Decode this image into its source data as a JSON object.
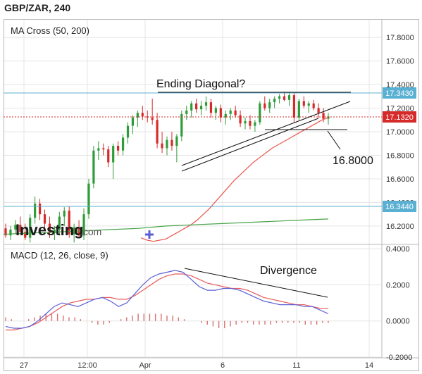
{
  "header": {
    "title": "GBP/ZAR, 240"
  },
  "brand": {
    "logo_text": "Investing",
    "logo_suffix": ".com"
  },
  "colors": {
    "up": "#2f9c3a",
    "down": "#d62a2a",
    "ma50": "#e8584f",
    "ma200": "#48a348",
    "macd": "#5a5fd6",
    "signal": "#e85a5a",
    "hist": "#d87070",
    "hline_blue": "#5ab0d2",
    "last_price": "#d62a2a",
    "grid": "#e4e4e4"
  },
  "chart_data": [
    {
      "type": "candlestick",
      "title": "MA Cross (50, 200)",
      "indicator_label": "MA Cross (50, 200)",
      "ylim": [
        16.05,
        17.95
      ],
      "y_ticks": [
        "17.8000",
        "17.6000",
        "17.4000",
        "17.2000",
        "17.0000",
        "16.8000",
        "16.6000",
        "16.4000",
        "16.2000"
      ],
      "x_ticks": [
        "27",
        "12:00",
        "Apr",
        "6",
        "11",
        "14"
      ],
      "price_tags": {
        "resistance": "17.3430",
        "last": "17.1320",
        "support": "16.3440"
      },
      "annotations": {
        "pattern": "Ending Diagonal?",
        "target": "16.8000"
      },
      "candles": [
        [
          16.18,
          16.22,
          16.1,
          16.12
        ],
        [
          16.12,
          16.2,
          16.08,
          16.17
        ],
        [
          16.17,
          16.25,
          16.13,
          16.21
        ],
        [
          16.21,
          16.28,
          16.12,
          16.15
        ],
        [
          16.15,
          16.22,
          16.08,
          16.1
        ],
        [
          16.1,
          16.3,
          16.06,
          16.27
        ],
        [
          16.27,
          16.45,
          16.22,
          16.39
        ],
        [
          16.39,
          16.43,
          16.25,
          16.3
        ],
        [
          16.3,
          16.34,
          16.18,
          16.22
        ],
        [
          16.22,
          16.28,
          16.1,
          16.14
        ],
        [
          16.14,
          16.2,
          16.08,
          16.17
        ],
        [
          16.17,
          16.32,
          16.12,
          16.28
        ],
        [
          16.28,
          16.36,
          16.2,
          16.33
        ],
        [
          16.33,
          16.37,
          16.1,
          16.13
        ],
        [
          16.13,
          16.22,
          16.06,
          16.19
        ],
        [
          16.19,
          16.25,
          16.1,
          16.12
        ],
        [
          16.12,
          16.35,
          16.08,
          16.3
        ],
        [
          16.3,
          16.6,
          16.26,
          16.56
        ],
        [
          16.56,
          16.88,
          16.52,
          16.84
        ],
        [
          16.84,
          16.92,
          16.76,
          16.86
        ],
        [
          16.86,
          16.9,
          16.8,
          16.85
        ],
        [
          16.85,
          16.88,
          16.7,
          16.74
        ],
        [
          16.74,
          16.9,
          16.6,
          16.88
        ],
        [
          16.88,
          16.92,
          16.8,
          16.84
        ],
        [
          16.84,
          16.98,
          16.8,
          16.95
        ],
        [
          16.95,
          17.08,
          16.9,
          17.05
        ],
        [
          17.05,
          17.14,
          16.98,
          17.12
        ],
        [
          17.12,
          17.18,
          17.04,
          17.16
        ],
        [
          17.16,
          17.22,
          17.1,
          17.13
        ],
        [
          17.13,
          17.18,
          17.08,
          17.12
        ],
        [
          17.12,
          17.28,
          17.06,
          17.1
        ],
        [
          17.1,
          17.16,
          16.86,
          16.9
        ],
        [
          16.9,
          17.0,
          16.82,
          16.86
        ],
        [
          16.86,
          16.96,
          16.8,
          16.93
        ],
        [
          16.93,
          17.0,
          16.84,
          16.88
        ],
        [
          16.88,
          16.98,
          16.74,
          16.96
        ],
        [
          16.96,
          17.18,
          16.92,
          17.15
        ],
        [
          17.15,
          17.22,
          17.1,
          17.18
        ],
        [
          17.18,
          17.26,
          17.12,
          17.24
        ],
        [
          17.24,
          17.28,
          17.16,
          17.19
        ],
        [
          17.19,
          17.26,
          17.14,
          17.22
        ],
        [
          17.22,
          17.3,
          17.18,
          17.25
        ],
        [
          17.25,
          17.28,
          17.12,
          17.16
        ],
        [
          17.16,
          17.22,
          17.1,
          17.2
        ],
        [
          17.2,
          17.23,
          17.08,
          17.12
        ],
        [
          17.12,
          17.18,
          17.06,
          17.15
        ],
        [
          17.15,
          17.2,
          17.1,
          17.18
        ],
        [
          17.18,
          17.22,
          17.12,
          17.14
        ],
        [
          17.14,
          17.18,
          17.04,
          17.07
        ],
        [
          17.07,
          17.12,
          17.02,
          17.09
        ],
        [
          17.09,
          17.14,
          17.02,
          17.05
        ],
        [
          17.05,
          17.1,
          17.0,
          17.08
        ],
        [
          17.08,
          17.26,
          17.06,
          17.24
        ],
        [
          17.24,
          17.3,
          17.18,
          17.2
        ],
        [
          17.2,
          17.28,
          17.16,
          17.25
        ],
        [
          17.25,
          17.3,
          17.2,
          17.28
        ],
        [
          17.28,
          17.32,
          17.24,
          17.3
        ],
        [
          17.3,
          17.34,
          17.26,
          17.27
        ],
        [
          17.27,
          17.34,
          17.22,
          17.31
        ],
        [
          17.31,
          17.33,
          17.08,
          17.12
        ],
        [
          17.12,
          17.28,
          17.1,
          17.26
        ],
        [
          17.26,
          17.3,
          17.2,
          17.22
        ],
        [
          17.22,
          17.26,
          17.16,
          17.24
        ],
        [
          17.24,
          17.27,
          17.18,
          17.2
        ],
        [
          17.2,
          17.24,
          17.12,
          17.16
        ],
        [
          17.16,
          17.2,
          17.08,
          17.11
        ],
        [
          17.11,
          17.16,
          17.06,
          17.13
        ]
      ],
      "ma50": [
        16.1,
        16.08,
        16.07,
        16.08,
        16.09,
        16.12,
        16.15,
        16.18,
        16.21,
        16.25,
        16.3,
        16.35,
        16.41,
        16.47,
        16.53,
        16.59,
        16.64,
        16.69,
        16.74,
        16.78,
        16.82,
        16.86,
        16.89,
        16.92,
        16.95,
        16.98,
        17.01,
        17.04,
        17.07,
        17.1,
        17.12
      ],
      "ma200": [
        16.13,
        16.14,
        16.15,
        16.16,
        16.17,
        16.18,
        16.2,
        16.21,
        16.22,
        16.23,
        16.24,
        16.25,
        16.26
      ]
    },
    {
      "type": "line",
      "title": "MACD (12, 26, close, 9)",
      "indicator_label": "MACD (12, 26, close, 9)",
      "ylim": [
        -0.2,
        0.42
      ],
      "y_ticks": [
        "0.4000",
        "0.2000",
        "0.0000",
        "-0.2000"
      ],
      "annotations": {
        "divergence": "Divergence"
      },
      "series": [
        {
          "values": [
            -0.03,
            -0.04,
            -0.04,
            -0.03,
            0.0,
            0.04,
            0.08,
            0.1,
            0.09,
            0.08,
            0.1,
            0.12,
            0.13,
            0.11,
            0.08,
            0.1,
            0.15,
            0.2,
            0.24,
            0.26,
            0.27,
            0.28,
            0.27,
            0.23,
            0.19,
            0.17,
            0.17,
            0.18,
            0.18,
            0.17,
            0.15,
            0.13,
            0.11,
            0.1,
            0.09,
            0.09,
            0.09,
            0.08,
            0.08,
            0.06,
            0.04
          ]
        },
        {
          "values": [
            -0.05,
            -0.05,
            -0.04,
            -0.03,
            -0.01,
            0.02,
            0.05,
            0.08,
            0.1,
            0.11,
            0.12,
            0.12,
            0.13,
            0.13,
            0.12,
            0.12,
            0.14,
            0.17,
            0.2,
            0.23,
            0.25,
            0.26,
            0.26,
            0.25,
            0.23,
            0.21,
            0.2,
            0.19,
            0.18,
            0.18,
            0.17,
            0.15,
            0.13,
            0.12,
            0.11,
            0.1,
            0.09,
            0.09,
            0.08,
            0.07,
            0.07
          ]
        }
      ],
      "histogram": [
        0.02,
        0.01,
        0.0,
        0.0,
        0.01,
        0.02,
        0.03,
        0.04,
        0.04,
        0.04,
        0.03,
        0.02,
        0.02,
        0.01,
        0.0,
        -0.01,
        -0.02,
        -0.02,
        -0.01,
        0.0,
        0.01,
        0.02,
        0.03,
        0.04,
        0.04,
        0.04,
        0.04,
        0.04,
        0.03,
        0.03,
        0.02,
        0.01,
        0.0,
        0.0,
        -0.01,
        -0.02,
        -0.03,
        -0.04,
        -0.04,
        -0.03,
        -0.02,
        -0.01,
        -0.01,
        -0.02,
        -0.02,
        -0.02,
        -0.02,
        -0.01,
        -0.01,
        -0.01,
        -0.01,
        -0.01,
        -0.02,
        -0.02,
        -0.02,
        -0.01,
        -0.01
      ]
    }
  ]
}
